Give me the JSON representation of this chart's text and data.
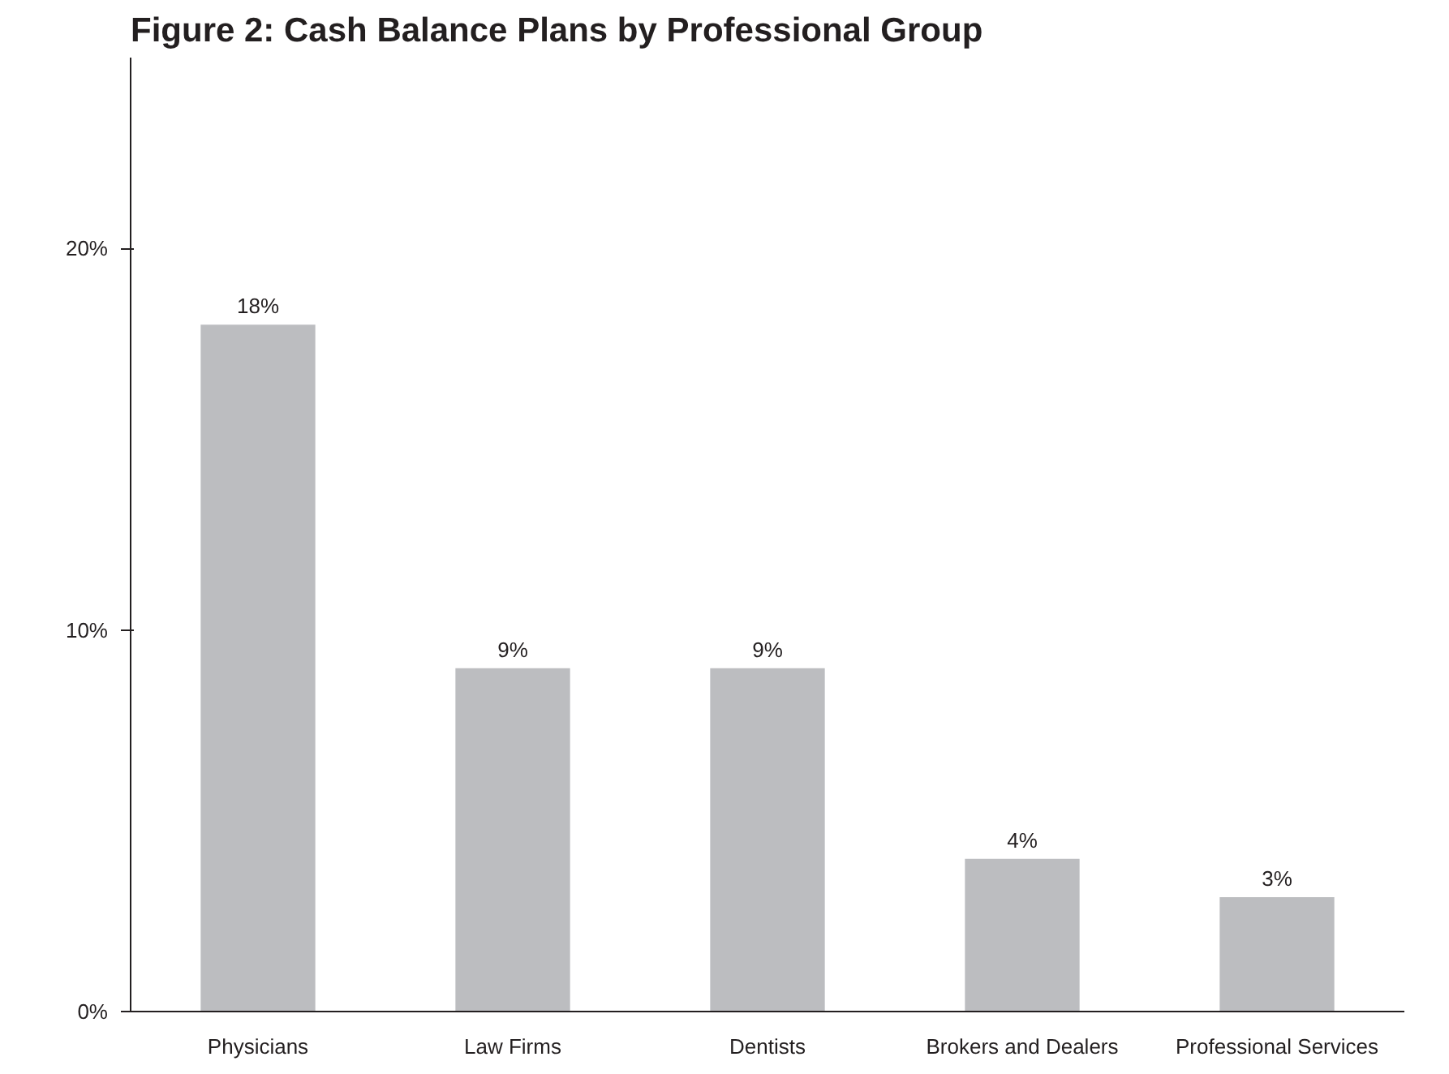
{
  "chart_data": {
    "type": "bar",
    "title": "Figure 2:  Cash Balance Plans by Professional Group",
    "categories": [
      "Physicians",
      "Law Firms",
      "Dentists",
      "Brokers and Dealers",
      "Professional Services"
    ],
    "values": [
      18,
      9,
      9,
      4,
      3
    ],
    "color": "#bcbdc0",
    "value_labels": [
      "18%",
      "9%",
      "9%",
      "4%",
      "3%"
    ],
    "ylim": [
      0,
      25
    ],
    "yticks": [
      {
        "value": 0,
        "label": "0%"
      },
      {
        "value": 10,
        "label": "10%"
      },
      {
        "value": 20,
        "label": "20%"
      }
    ],
    "grid": false
  }
}
